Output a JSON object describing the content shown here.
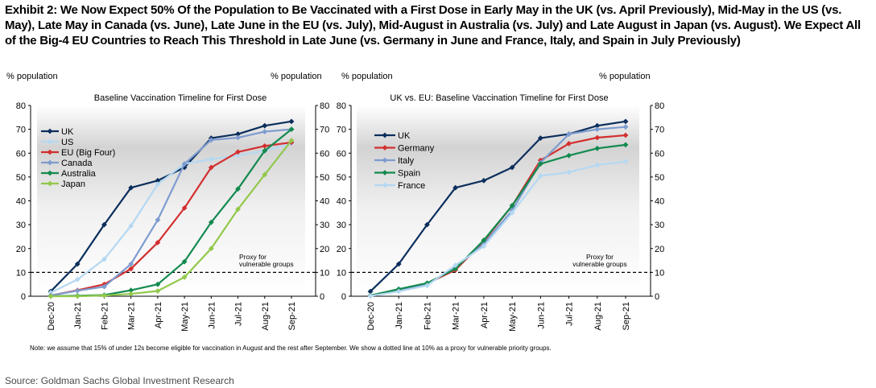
{
  "header": {
    "title": "Exhibit 2: We Now Expect 50% Of the Population to Be Vaccinated with a First Dose in Early May in the UK (vs. April Previously), Mid-May in the US (vs. May), Late May in Canada (vs. June), Late June in the EU (vs. July), Mid-August in Australia (vs. July) and Late August in Japan (vs. August). We Expect All of the Big-4 EU Countries to Reach This Threshold in Late June (vs. Germany in June and France, Italy, and Spain in July Previously)"
  },
  "footer": {
    "note": "Note: we assume that 15% of under 12s become eligible for vaccination in August and the rest after September. We show a dotted line at 10% as a proxy for vulnerable priority groups.",
    "source": "Source: Goldman Sachs Global Investment Research"
  },
  "chart_data": [
    {
      "type": "line",
      "title": "Baseline Vaccination Timeline  for First Dose",
      "ylabel_left": "% population",
      "ylabel_right": "% population",
      "ylim": [
        0,
        80
      ],
      "yticks": [
        0,
        10,
        20,
        30,
        40,
        50,
        60,
        70,
        80
      ],
      "categories": [
        "Dec-20",
        "Jan-21",
        "Feb-21",
        "Mar-21",
        "Apr-21",
        "May-21",
        "Jun-21",
        "Jul-21",
        "Aug-21",
        "Sep-21"
      ],
      "reference_line": {
        "y": 10,
        "label": [
          "Proxy for",
          "vulnerable groups"
        ]
      },
      "series": [
        {
          "name": "UK",
          "color": "#0b2e5c",
          "values": [
            2,
            13.5,
            30,
            45.5,
            48.5,
            54,
            66.3,
            68,
            71.5,
            73.3
          ]
        },
        {
          "name": "US",
          "color": "#b5d8f2",
          "values": [
            1.5,
            7,
            15.5,
            29.5,
            47,
            55.5,
            57.5,
            59,
            61,
            64
          ]
        },
        {
          "name": "EU (Big Four)",
          "color": "#d32f2f",
          "values": [
            0.3,
            2.5,
            5,
            11.5,
            22.5,
            37,
            54,
            60.5,
            63,
            64.5
          ]
        },
        {
          "name": "Canada",
          "color": "#7e9ccf",
          "values": [
            0.3,
            2.3,
            4,
            13.5,
            32,
            55.5,
            65.5,
            66.5,
            69,
            70
          ]
        },
        {
          "name": "Australia",
          "color": "#138a4f",
          "values": [
            0,
            0.2,
            0.5,
            2.5,
            5,
            14.5,
            31,
            45,
            61,
            70
          ]
        },
        {
          "name": "Japan",
          "color": "#92c84c",
          "values": [
            0,
            0,
            0.3,
            1,
            2.2,
            8,
            20,
            36.5,
            51,
            65.3
          ]
        }
      ]
    },
    {
      "type": "line",
      "title": "UK vs. EU: Baseline Vaccination Timeline  for First Dose",
      "ylabel_left": "% population",
      "ylabel_right": "% population",
      "ylim": [
        0,
        80
      ],
      "yticks": [
        0,
        10,
        20,
        30,
        40,
        50,
        60,
        70,
        80
      ],
      "categories": [
        "Dec-20",
        "Jan-21",
        "Feb-21",
        "Mar-21",
        "Apr-21",
        "May-21",
        "Jun-21",
        "Jul-21",
        "Aug-21",
        "Sep-21"
      ],
      "reference_line": {
        "y": 10,
        "label": [
          "Proxy for",
          "vulnerable groups"
        ]
      },
      "series": [
        {
          "name": "UK",
          "color": "#0b2e5c",
          "values": [
            2,
            13.5,
            30,
            45.5,
            48.5,
            54,
            66.3,
            68,
            71.5,
            73.3
          ]
        },
        {
          "name": "Germany",
          "color": "#d32f2f",
          "values": [
            0.3,
            2.8,
            5.3,
            11,
            23,
            38,
            57,
            64,
            66.5,
            67.5
          ]
        },
        {
          "name": "Italy",
          "color": "#7e9ccf",
          "values": [
            0.2,
            2.5,
            5,
            12,
            22,
            36,
            56,
            68,
            70,
            71
          ]
        },
        {
          "name": "Spain",
          "color": "#138a4f",
          "values": [
            0.3,
            3,
            5.5,
            11.5,
            23.5,
            38,
            55.5,
            59,
            62,
            63.5
          ]
        },
        {
          "name": "France",
          "color": "#b5d8f2",
          "values": [
            0.1,
            2,
            4.5,
            13,
            21,
            35,
            50.5,
            52,
            55,
            56.5
          ]
        }
      ]
    }
  ]
}
